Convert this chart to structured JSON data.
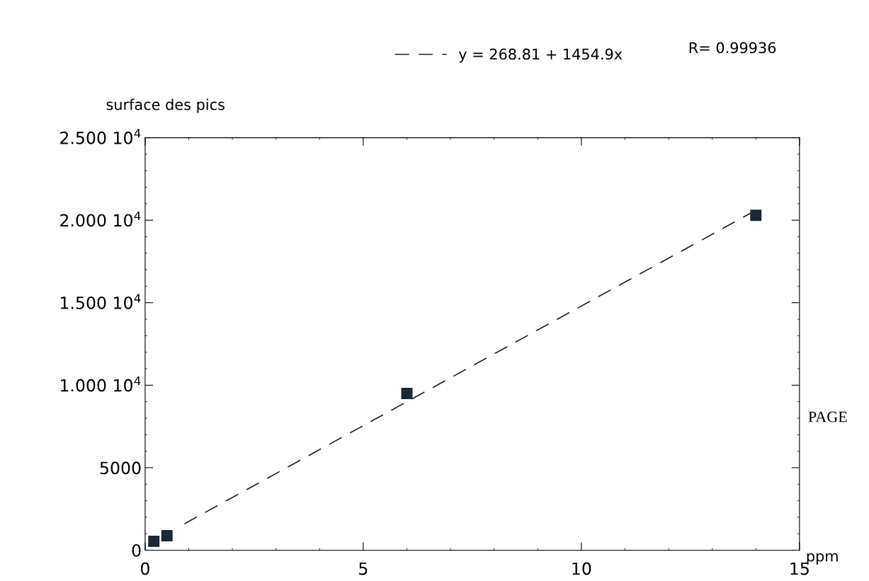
{
  "chart_data": {
    "type": "scatter",
    "xlabel": "ppm",
    "ylabel": "surface des pics",
    "xlim": [
      0,
      15
    ],
    "xticks": [
      0,
      5,
      10,
      15
    ],
    "ylim": [
      0,
      25000
    ],
    "yticks": [
      0,
      5000,
      {
        "value": 10000,
        "label": "1.000 10$^{4}$"
      },
      {
        "value": 15000,
        "label": "1.500 10$^{4}$"
      },
      {
        "value": 20000,
        "label": "2.000 10$^{4}$"
      },
      {
        "value": 25000,
        "label": "2.500 10$^{4}$"
      }
    ],
    "series": [
      {
        "color": "#1c2733",
        "marker": "square",
        "x": [
          0.2,
          0.5,
          6,
          14
        ],
        "values": [
          540,
          880,
          9500,
          20300
        ]
      },
      {
        "type": "line",
        "name": "y = 268.81 + 1454.9x",
        "color": "#222222",
        "line_style": "dashed",
        "x": [
          0.9,
          14
        ],
        "values": [
          1600,
          20600
        ]
      }
    ],
    "annotations": [
      "R= 0.99936",
      "PAGE"
    ],
    "legend": "top",
    "grid": false
  }
}
